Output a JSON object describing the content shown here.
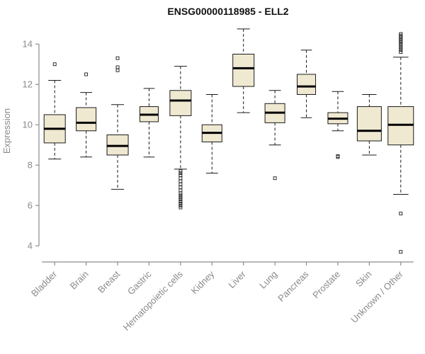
{
  "chart_data": {
    "type": "boxplot",
    "title": "ENSG00000118985 - ELL2",
    "ylabel": "Expression",
    "ylim": [
      3.2,
      14.85
    ],
    "yticks": [
      4,
      6,
      8,
      10,
      12,
      14
    ],
    "categories": [
      "Bladder",
      "Brain",
      "Breast",
      "Gastric",
      "Hematopoietic cells",
      "Kidney",
      "Liver",
      "Lung",
      "Pancreas",
      "Prostate",
      "Skin",
      "Unknown / Other"
    ],
    "boxes": [
      {
        "category": "Bladder",
        "low": 8.3,
        "q1": 9.1,
        "median": 9.8,
        "q3": 10.5,
        "high": 12.2,
        "outliers": [
          13.0
        ]
      },
      {
        "category": "Brain",
        "low": 8.4,
        "q1": 9.7,
        "median": 10.1,
        "q3": 10.85,
        "high": 11.6,
        "outliers": [
          12.5
        ]
      },
      {
        "category": "Breast",
        "low": 6.8,
        "q1": 8.5,
        "median": 8.95,
        "q3": 9.5,
        "high": 11.0,
        "outliers": [
          12.7,
          12.85,
          13.3
        ]
      },
      {
        "category": "Gastric",
        "low": 8.4,
        "q1": 10.15,
        "median": 10.5,
        "q3": 10.9,
        "high": 11.8,
        "outliers": []
      },
      {
        "category": "Hematopoietic cells",
        "low": 7.8,
        "q1": 10.45,
        "median": 11.2,
        "q3": 11.7,
        "high": 12.9,
        "outliers": [
          7.7,
          7.6,
          7.5,
          7.35,
          7.2,
          7.05,
          6.9,
          6.75,
          6.6,
          6.5,
          6.4,
          6.3,
          6.2,
          6.1,
          6.0,
          5.9
        ]
      },
      {
        "category": "Kidney",
        "low": 7.6,
        "q1": 9.15,
        "median": 9.6,
        "q3": 10.0,
        "high": 11.5,
        "outliers": []
      },
      {
        "category": "Liver",
        "low": 10.6,
        "q1": 11.9,
        "median": 12.8,
        "q3": 13.5,
        "high": 14.75,
        "outliers": []
      },
      {
        "category": "Lung",
        "low": 9.0,
        "q1": 10.1,
        "median": 10.6,
        "q3": 11.05,
        "high": 11.7,
        "outliers": [
          7.35
        ]
      },
      {
        "category": "Pancreas",
        "low": 10.35,
        "q1": 11.5,
        "median": 11.9,
        "q3": 12.5,
        "high": 13.7,
        "outliers": []
      },
      {
        "category": "Prostate",
        "low": 9.7,
        "q1": 10.05,
        "median": 10.3,
        "q3": 10.6,
        "high": 11.65,
        "outliers": [
          8.45,
          8.4
        ]
      },
      {
        "category": "Skin",
        "low": 8.5,
        "q1": 9.2,
        "median": 9.7,
        "q3": 10.9,
        "high": 11.5,
        "outliers": []
      },
      {
        "category": "Unknown / Other",
        "low": 6.55,
        "q1": 9.0,
        "median": 10.0,
        "q3": 10.9,
        "high": 13.35,
        "outliers": [
          14.5,
          14.42,
          14.34,
          14.26,
          14.18,
          14.1,
          14.0,
          13.9,
          13.8,
          13.7,
          13.6,
          5.6,
          3.7
        ]
      }
    ],
    "widths": [
      15,
      14,
      15,
      13,
      15,
      14,
      15,
      14,
      13,
      14,
      17,
      18
    ],
    "box_fill": "#f0e9d2",
    "box_stroke": "#1a1a1a",
    "median_color": "#000000",
    "axis_color": "#8c8c8c",
    "label_color": "#8a8a8a"
  }
}
